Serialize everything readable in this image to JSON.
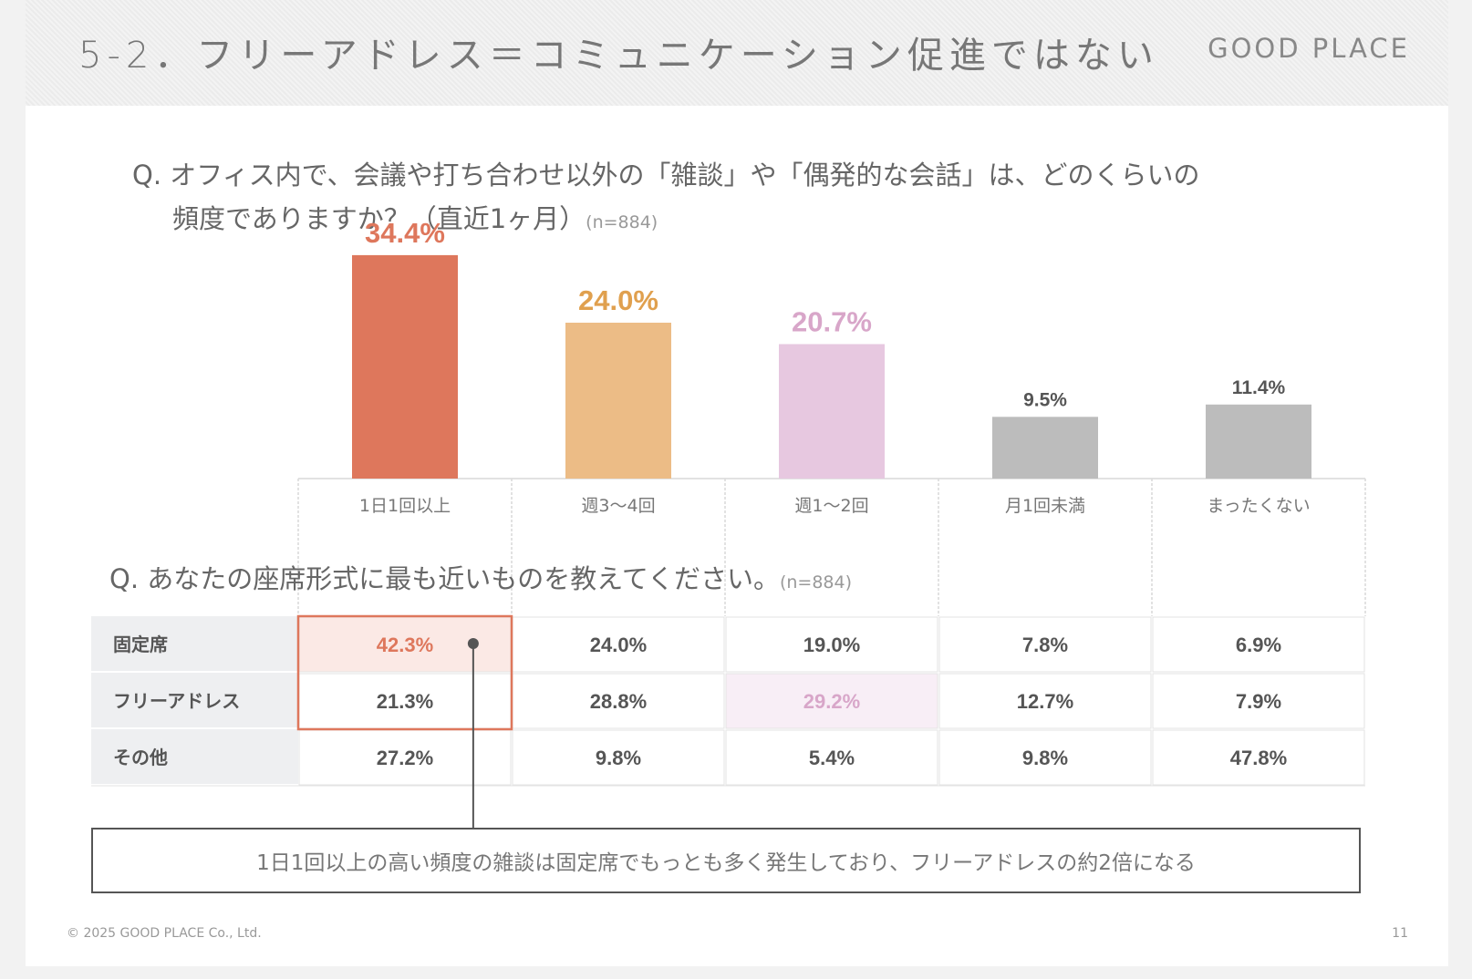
{
  "slide": {
    "title": "5-2．フリーアドレス＝コミュニケーション促進ではない",
    "brand": "GOOD PLACE",
    "copyright": "© 2025 GOOD PLACE Co., Ltd.",
    "page_number": "11"
  },
  "question1": {
    "line1": "Q. オフィス内で、会議や打ち合わせ以外の「雑談」や「偶発的な会話」は、どのくらいの",
    "line2": "頻度でありますか？（直近1ヶ月）",
    "n": "(n=884)"
  },
  "question2": {
    "text": "Q. あなたの座席形式に最も近いものを教えてください。",
    "n": "(n=884)"
  },
  "callout": "1日1回以上の高い頻度の雑談は固定席でもっとも多く発生しており、フリーアドレスの約2倍になる",
  "chart_data": [
    {
      "type": "bar",
      "categories": [
        "1日1回以上",
        "週3〜4回",
        "週1〜2回",
        "月1回未満",
        "まったくない"
      ],
      "values": [
        34.4,
        24.0,
        20.7,
        9.5,
        11.4
      ],
      "value_labels": [
        "34.4%",
        "24.0%",
        "20.7%",
        "9.5%",
        "11.4%"
      ],
      "colors": [
        "#de775c",
        "#ecbc86",
        "#e7c8e0",
        "#bcbcbc",
        "#bcbcbc"
      ],
      "label_colors": [
        "#de775c",
        "#e0a04e",
        "#d8a6c9",
        "#555555",
        "#555555"
      ],
      "ylim": [
        0,
        40
      ]
    },
    {
      "type": "table",
      "columns": [
        "1日1回以上",
        "週3〜4回",
        "週1〜2回",
        "月1回未満",
        "まったくない"
      ],
      "rows": [
        {
          "label": "固定席",
          "values": [
            "42.3%",
            "24.0%",
            "19.0%",
            "7.8%",
            "6.9%"
          ]
        },
        {
          "label": "フリーアドレス",
          "values": [
            "21.3%",
            "28.8%",
            "29.2%",
            "12.7%",
            "7.9%"
          ]
        },
        {
          "label": "その他",
          "values": [
            "27.2%",
            "9.8%",
            "5.4%",
            "9.8%",
            "47.8%"
          ]
        }
      ],
      "highlights": [
        {
          "row": 0,
          "col": 0,
          "bg": "#fbe9e5",
          "color": "#de775c"
        },
        {
          "row": 1,
          "col": 2,
          "bg": "#f8eef6",
          "color": "#d8a6c9"
        }
      ]
    }
  ]
}
